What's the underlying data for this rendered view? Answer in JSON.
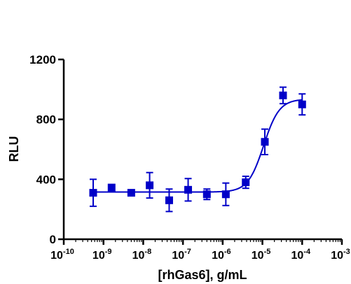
{
  "chart_data": {
    "type": "scatter",
    "title": "",
    "xlabel": "[rhGas6], g/mL",
    "ylabel": "RLU",
    "x_scale": "log",
    "xlim": [
      1e-10,
      0.001
    ],
    "ylim": [
      0,
      1200
    ],
    "y_ticks": [
      0,
      400,
      800,
      1200
    ],
    "y_tick_labels": [
      "0",
      "400",
      "800",
      "1200"
    ],
    "x_ticks": [
      {
        "base": "10",
        "exp": "-10",
        "value": 1e-10
      },
      {
        "base": "10",
        "exp": "-9",
        "value": 1e-09
      },
      {
        "base": "10",
        "exp": "-8",
        "value": 1e-08
      },
      {
        "base": "10",
        "exp": "-7",
        "value": 1e-07
      },
      {
        "base": "10",
        "exp": "-6",
        "value": 1e-06
      },
      {
        "base": "10",
        "exp": "-5",
        "value": 1e-05
      },
      {
        "base": "10",
        "exp": "-4",
        "value": 0.0001
      },
      {
        "base": "10",
        "exp": "-3",
        "value": 0.001
      }
    ],
    "grid": false,
    "color": "#0000c8",
    "marker": "square",
    "points": [
      {
        "x": 5.5e-10,
        "y": 310,
        "err": 90
      },
      {
        "x": 1.6e-09,
        "y": 345,
        "err": 12
      },
      {
        "x": 5e-09,
        "y": 310,
        "err": 15
      },
      {
        "x": 1.45e-08,
        "y": 360,
        "err": 85
      },
      {
        "x": 4.5e-08,
        "y": 260,
        "err": 75
      },
      {
        "x": 1.35e-07,
        "y": 330,
        "err": 75
      },
      {
        "x": 4e-07,
        "y": 300,
        "err": 35
      },
      {
        "x": 1.2e-06,
        "y": 300,
        "err": 75
      },
      {
        "x": 3.8e-06,
        "y": 380,
        "err": 40
      },
      {
        "x": 1.15e-05,
        "y": 650,
        "err": 85
      },
      {
        "x": 3.3e-05,
        "y": 960,
        "err": 55
      },
      {
        "x": 0.0001,
        "y": 900,
        "err": 70
      }
    ],
    "fit": {
      "bottom": 315,
      "top": 935,
      "logEC50": -4.97,
      "hill": 2.2,
      "x_min": 5.5e-10,
      "x_max": 0.0001
    }
  }
}
